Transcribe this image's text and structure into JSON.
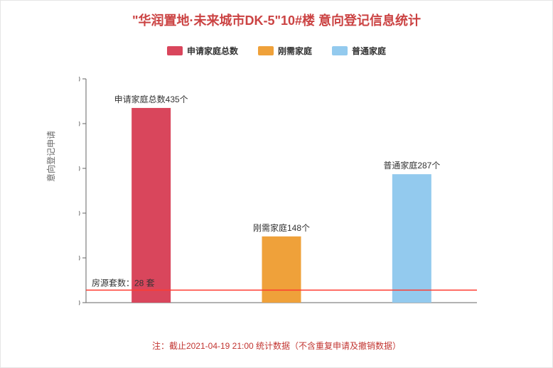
{
  "title": "\"华润置地·未来城市DK-5\"10#楼 意向登记信息统计",
  "title_color": "#cb4343",
  "legend": [
    {
      "label": "申请家庭总数",
      "color": "#d9465c"
    },
    {
      "label": "刚需家庭",
      "color": "#efa13a"
    },
    {
      "label": "普通家庭",
      "color": "#93caee"
    }
  ],
  "y_axis": {
    "title": "意向登记申请",
    "min": 0,
    "max": 500,
    "step": 100
  },
  "bars": [
    {
      "value": 435,
      "color": "#d9465c",
      "label": "申请家庭总数435个"
    },
    {
      "value": 148,
      "color": "#efa13a",
      "label": "刚需家庭148个"
    },
    {
      "value": 287,
      "color": "#93caee",
      "label": "普通家庭287个"
    }
  ],
  "reference_line": {
    "value": 28,
    "label": "房源套数：28 套",
    "color": "#ff3b30"
  },
  "footer": "注：截止2021-04-19 21:00 统计数据（不含重复申请及撤销数据）",
  "axis_color": "#666666",
  "bar_width_ratio": 0.3
}
